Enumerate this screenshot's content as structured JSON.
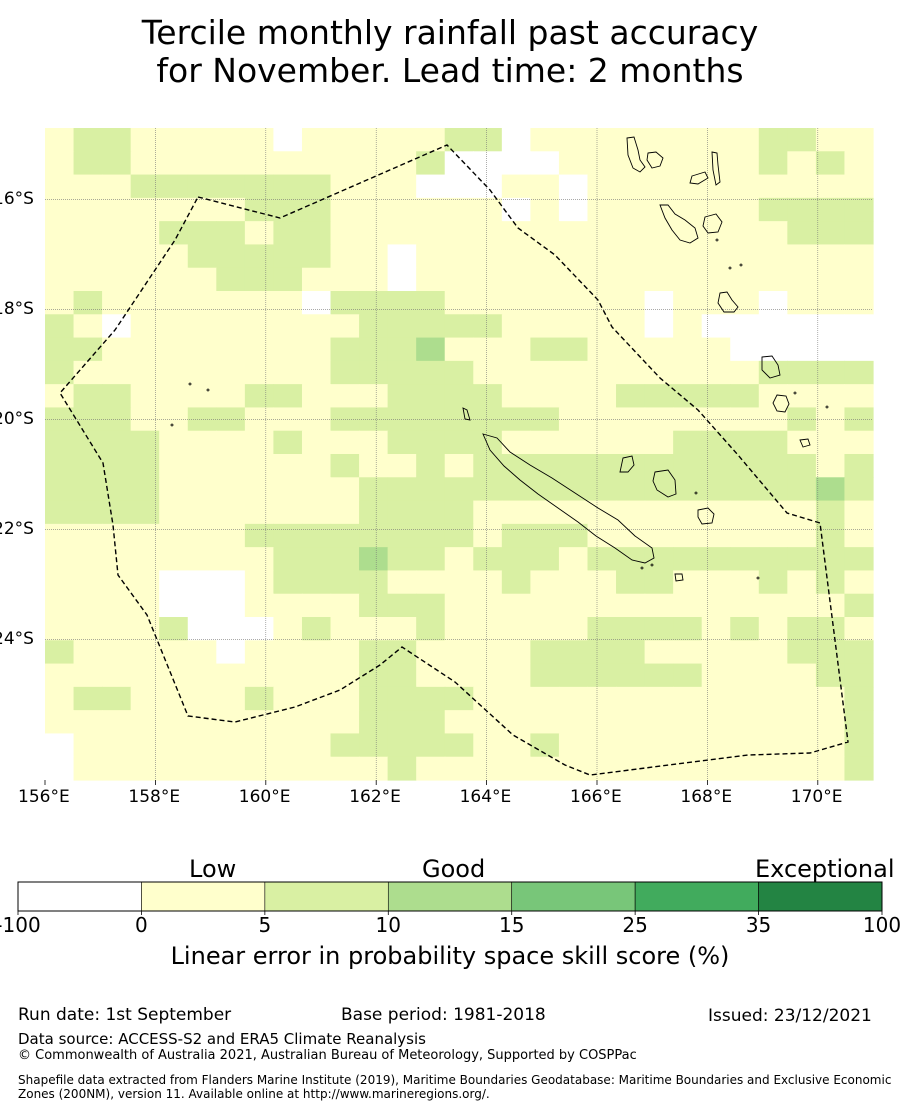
{
  "title": {
    "line1": "Tercile monthly rainfall past accuracy",
    "line2": "for November. Lead time: 2 months"
  },
  "map": {
    "x_ticks": [
      "156°E",
      "158°E",
      "160°E",
      "162°E",
      "164°E",
      "166°E",
      "168°E",
      "170°E"
    ],
    "y_ticks": [
      "16°S",
      "18°S",
      "20°S",
      "22°S",
      "24°S"
    ],
    "colors": {
      "category_0": "#ffffff",
      "category_1": "#ffffcc",
      "category_2": "#d9f0a3",
      "category_3": "#addd8e",
      "category_4": "#78c679",
      "category_5": "#41ab5d",
      "category_6": "#238443",
      "eez_line": "#000000",
      "coast": "#000000"
    },
    "grid_categories": [
      "12211111011111220111111112211",
      "12211111111112000011111112121",
      "11122222221110001101111111111",
      "11111112221111110101111112222",
      "11112221221111111111111111222",
      "11111222221101111111111111111",
      "11111122211101111111111111111",
      "12111111102222111111101110111",
      "21011111111222221111101000000",
      "22111111112223111221111100000",
      "21111111112222211111111112222",
      "12211112211122221111222221111",
      "22211221112222222211111111212",
      "22221111211122221111112222111",
      "22221111112112122222222222212",
      "22221111111222222222222222232",
      "22221111111222211111111111121",
      "11111112222222212221111111121",
      "11111111222322122212222222222",
      "11110001222211112111221112121",
      "11110001111222111111111111112",
      "11112000121112111112222121221",
      "21111101111221111222211111222",
      "11111111111221111222222111122",
      "12211112111222211111111111112",
      "11111111111222111111111111112",
      "01111111112222211211111111112",
      "01111111111121111111111111112"
    ]
  },
  "colorbar": {
    "heading_low": "Low",
    "heading_good": "Good",
    "heading_exceptional": "Exceptional",
    "ticks": [
      "-100",
      "0",
      "5",
      "10",
      "15",
      "25",
      "35",
      "100"
    ],
    "label": "Linear error in probability space skill score (%)"
  },
  "footer": {
    "run_date": "Run date: 1st September",
    "base_period": "Base period: 1981-2018",
    "issued": "Issued: 23/12/2021",
    "data_source": "Data source: ACCESS-S2 and ERA5 Climate Reanalysis",
    "copyright": "© Commonwealth of Australia 2021, Australian Bureau of Meteorology, Supported by COSPPac",
    "shapefile": "Shapefile data extracted from Flanders Marine Institute (2019), Maritime Boundaries Geodatabase: Maritime Boundaries and Exclusive Economic Zones (200NM), version 11. Available online at http://www.marineregions.org/."
  }
}
